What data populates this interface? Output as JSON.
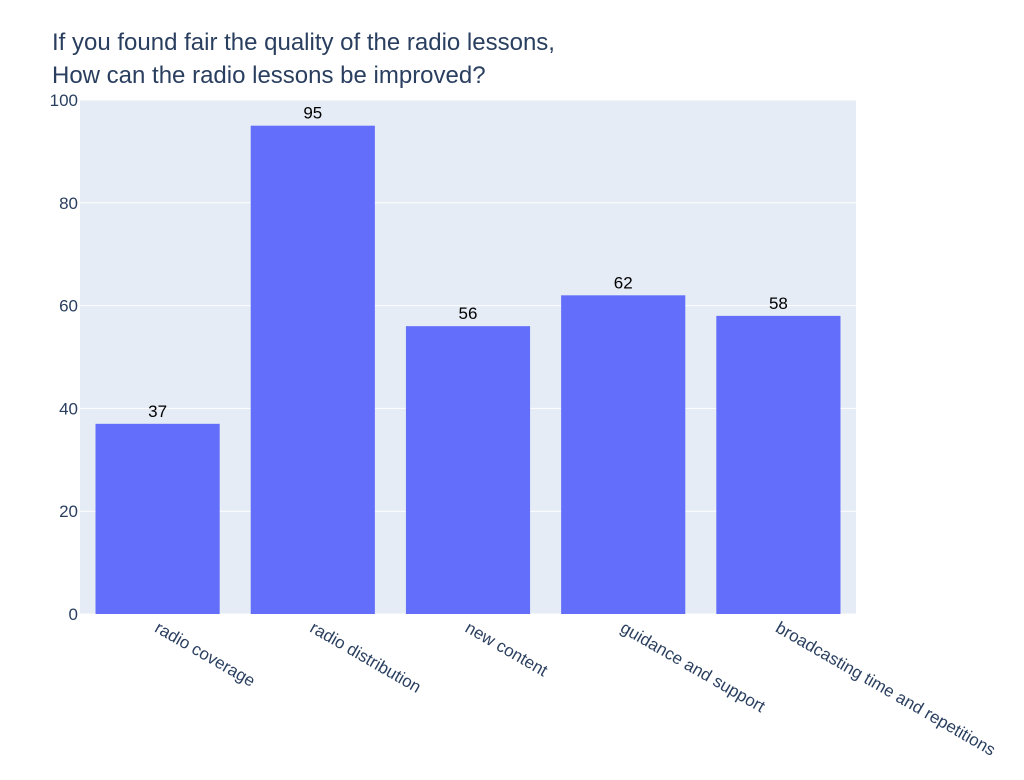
{
  "chart_data": {
    "type": "bar",
    "title_lines": [
      "If you found fair the quality of the radio lessons,",
      "How can the radio lessons be improved?"
    ],
    "categories": [
      "radio coverage",
      "radio distribution",
      "new content",
      "guidance and support",
      "broadcasting time and repetitions"
    ],
    "values": [
      37,
      95,
      56,
      62,
      58
    ],
    "data_labels": [
      "37",
      "95",
      "56",
      "62",
      "58"
    ],
    "ylim": [
      0,
      100
    ],
    "yticks": [
      0,
      20,
      40,
      60,
      80,
      100
    ],
    "xlabel": "",
    "ylabel": "",
    "grid": true,
    "colors": {
      "bar": "#636efa",
      "plot_background": "#e5ecf6",
      "gridline": "#ffffff",
      "axis_text": "#2a3f5f",
      "data_label_text": "#000000"
    }
  }
}
